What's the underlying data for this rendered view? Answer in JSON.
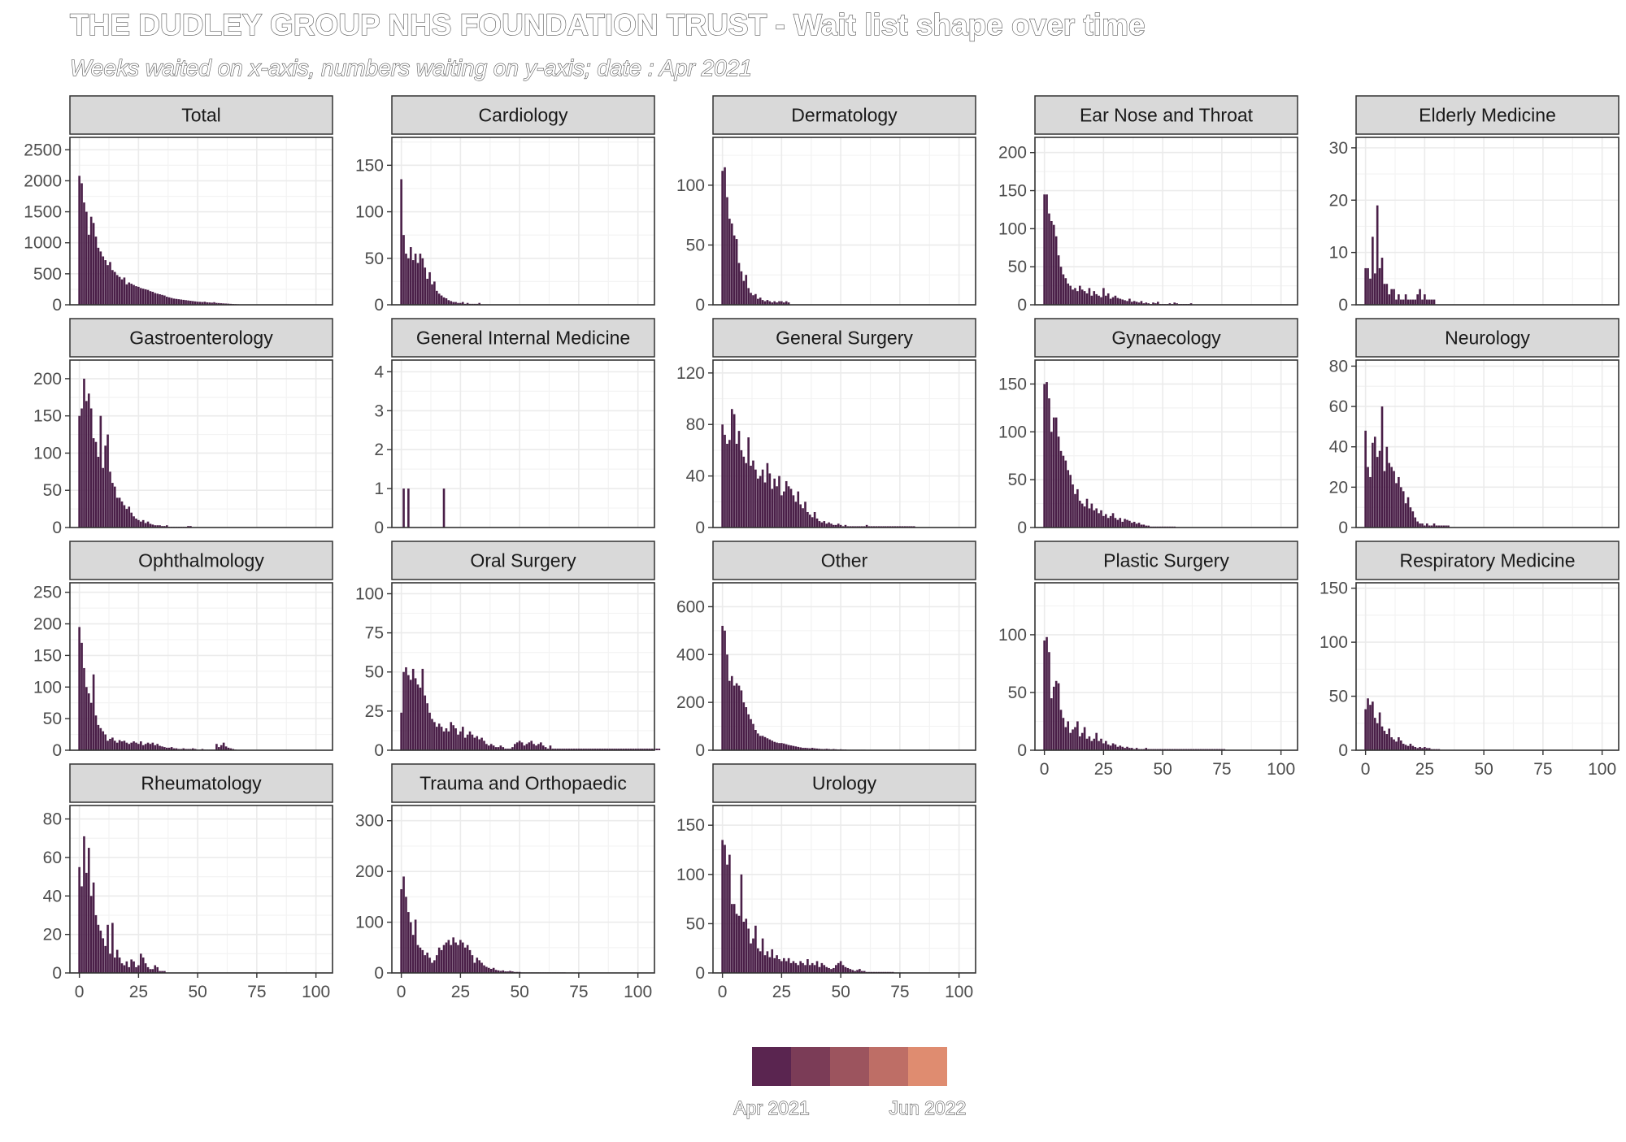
{
  "title": "THE DUDLEY GROUP NHS FOUNDATION TRUST - Wait list shape over time",
  "subtitle": "Weeks waited on x-axis, numbers waiting on y-axis; date : Apr 2021",
  "legend": {
    "labels": [
      "Apr 2021",
      "Jun 2022"
    ],
    "colors": [
      "#5a2550",
      "#7b3c57",
      "#9c545e",
      "#be6e66",
      "#df8c70"
    ]
  },
  "colors": {
    "bar": "#4a1f48",
    "strip": "#d9d9d9",
    "grid": "#ebebeb"
  },
  "chart_data": {
    "type": "bar",
    "xlim": [
      -4,
      107
    ],
    "x_ticks": [
      0,
      25,
      50,
      75,
      100
    ],
    "facets": [
      {
        "name": "Total",
        "ylim": [
          0,
          2700
        ],
        "y_ticks": [
          0,
          500,
          1000,
          1500,
          2000,
          2500
        ],
        "values": [
          2080,
          1960,
          1650,
          1500,
          1130,
          1420,
          1320,
          1100,
          920,
          860,
          780,
          720,
          640,
          690,
          560,
          530,
          480,
          450,
          410,
          440,
          330,
          360,
          340,
          320,
          300,
          290,
          270,
          260,
          250,
          240,
          220,
          210,
          190,
          180,
          170,
          160,
          150,
          130,
          120,
          110,
          100,
          95,
          90,
          85,
          80,
          75,
          70,
          65,
          60,
          55,
          50,
          48,
          45,
          50,
          40,
          38,
          35,
          42,
          30,
          28,
          25,
          22,
          20,
          18,
          15,
          12,
          10,
          8,
          6,
          5,
          4,
          3,
          2,
          2,
          1
        ]
      },
      {
        "name": "Cardiology",
        "ylim": [
          0,
          180
        ],
        "y_ticks": [
          0,
          50,
          100,
          150
        ],
        "values": [
          135,
          75,
          55,
          50,
          62,
          48,
          55,
          45,
          55,
          50,
          40,
          28,
          35,
          22,
          25,
          15,
          12,
          10,
          8,
          7,
          5,
          4,
          3,
          3,
          2,
          2,
          3,
          1,
          2,
          1,
          1,
          1,
          1,
          2
        ]
      },
      {
        "name": "Dermatology",
        "ylim": [
          0,
          140
        ],
        "y_ticks": [
          0,
          50,
          100
        ],
        "values": [
          112,
          115,
          90,
          72,
          68,
          58,
          55,
          35,
          28,
          20,
          25,
          14,
          10,
          8,
          9,
          5,
          6,
          4,
          3,
          4,
          3,
          2,
          3,
          2,
          3,
          3,
          2,
          3,
          2
        ]
      },
      {
        "name": "Ear Nose and Throat",
        "ylim": [
          0,
          220
        ],
        "y_ticks": [
          0,
          50,
          100,
          150,
          200
        ],
        "values": [
          145,
          145,
          120,
          110,
          105,
          90,
          65,
          50,
          40,
          35,
          28,
          25,
          20,
          22,
          18,
          25,
          20,
          18,
          15,
          22,
          12,
          18,
          14,
          12,
          10,
          22,
          12,
          15,
          8,
          10,
          12,
          9,
          8,
          7,
          6,
          5,
          8,
          4,
          5,
          4,
          3,
          5,
          2,
          3,
          2,
          1,
          3,
          2,
          4,
          1,
          1,
          1,
          1,
          2,
          1,
          3,
          2,
          1,
          1,
          1,
          1,
          1,
          2
        ]
      },
      {
        "name": "Elderly Medicine",
        "ylim": [
          0,
          32
        ],
        "y_ticks": [
          0,
          10,
          20,
          30
        ],
        "values": [
          7,
          7,
          5,
          13,
          6,
          19,
          7,
          9,
          4,
          4,
          2,
          3,
          3,
          1,
          2,
          1,
          1,
          2,
          1,
          1,
          1,
          1,
          2,
          3,
          1,
          2,
          1,
          1,
          1,
          1
        ]
      },
      {
        "name": "Gastroenterology",
        "ylim": [
          0,
          225
        ],
        "y_ticks": [
          0,
          50,
          100,
          150,
          200
        ],
        "values": [
          150,
          160,
          200,
          170,
          180,
          160,
          120,
          115,
          95,
          150,
          80,
          110,
          125,
          75,
          60,
          55,
          40,
          40,
          35,
          30,
          25,
          28,
          20,
          15,
          12,
          10,
          8,
          10,
          6,
          8,
          5,
          4,
          3,
          3,
          3,
          2,
          2,
          3,
          1,
          1,
          1,
          1,
          1,
          1,
          1,
          1,
          2,
          2
        ]
      },
      {
        "name": "General Internal Medicine",
        "ylim": [
          0,
          4.3
        ],
        "y_ticks": [
          0,
          1,
          2,
          3,
          4
        ],
        "values": [
          0,
          1,
          0,
          1,
          0,
          0,
          0,
          0,
          0,
          0,
          0,
          0,
          0,
          0,
          0,
          0,
          0,
          0,
          1
        ]
      },
      {
        "name": "General Surgery",
        "ylim": [
          0,
          130
        ],
        "y_ticks": [
          0,
          40,
          80,
          120
        ],
        "values": [
          80,
          72,
          65,
          68,
          92,
          88,
          65,
          75,
          60,
          55,
          50,
          70,
          48,
          52,
          45,
          38,
          40,
          45,
          35,
          50,
          42,
          30,
          38,
          32,
          40,
          25,
          28,
          36,
          32,
          30,
          25,
          20,
          28,
          18,
          15,
          20,
          12,
          10,
          8,
          12,
          7,
          5,
          4,
          5,
          3,
          4,
          3,
          2,
          2,
          3,
          2,
          1,
          2,
          1,
          1,
          1,
          1,
          1,
          1,
          1,
          1,
          2,
          1,
          1,
          1,
          1,
          1,
          1,
          1,
          1,
          1,
          1,
          1,
          1,
          1,
          1,
          1,
          1,
          1,
          1,
          1,
          1
        ]
      },
      {
        "name": "Gynaecology",
        "ylim": [
          0,
          175
        ],
        "y_ticks": [
          0,
          50,
          100,
          150
        ],
        "values": [
          150,
          152,
          135,
          100,
          115,
          115,
          95,
          80,
          75,
          70,
          60,
          55,
          45,
          35,
          40,
          28,
          25,
          22,
          30,
          20,
          25,
          18,
          20,
          15,
          18,
          12,
          14,
          10,
          12,
          15,
          10,
          8,
          10,
          6,
          9,
          8,
          7,
          5,
          6,
          4,
          5,
          3,
          3,
          2,
          2,
          1,
          1,
          1,
          1,
          1,
          1,
          1,
          1,
          1,
          1,
          1
        ]
      },
      {
        "name": "Neurology",
        "ylim": [
          0,
          83
        ],
        "y_ticks": [
          0,
          20,
          40,
          60,
          80
        ],
        "values": [
          48,
          30,
          25,
          42,
          45,
          35,
          38,
          60,
          28,
          40,
          32,
          30,
          28,
          22,
          25,
          20,
          18,
          12,
          15,
          10,
          8,
          5,
          3,
          2,
          2,
          1,
          2,
          1,
          1,
          2,
          1,
          1,
          1,
          1,
          1,
          1
        ]
      },
      {
        "name": "Ophthalmology",
        "ylim": [
          0,
          265
        ],
        "y_ticks": [
          0,
          50,
          100,
          150,
          200,
          250
        ],
        "values": [
          195,
          170,
          130,
          100,
          90,
          75,
          120,
          55,
          40,
          35,
          30,
          25,
          15,
          18,
          20,
          15,
          12,
          16,
          14,
          15,
          12,
          10,
          12,
          14,
          12,
          10,
          14,
          8,
          10,
          12,
          10,
          12,
          8,
          10,
          7,
          6,
          5,
          4,
          4,
          5,
          3,
          3,
          2,
          2,
          3,
          2,
          2,
          2,
          3,
          2,
          1,
          1,
          2,
          1,
          1,
          1,
          1,
          1,
          10,
          5,
          8,
          12,
          6,
          4,
          3,
          2,
          1
        ]
      },
      {
        "name": "Oral Surgery",
        "ylim": [
          0,
          107
        ],
        "y_ticks": [
          0,
          25,
          50,
          75,
          100
        ],
        "values": [
          24,
          50,
          53,
          48,
          45,
          52,
          46,
          42,
          40,
          52,
          35,
          30,
          24,
          20,
          18,
          15,
          17,
          15,
          12,
          14,
          12,
          18,
          16,
          14,
          10,
          12,
          15,
          8,
          10,
          12,
          10,
          8,
          9,
          7,
          8,
          6,
          4,
          3,
          4,
          3,
          2,
          2,
          3,
          2,
          1,
          1,
          1,
          2,
          4,
          5,
          6,
          5,
          3,
          4,
          5,
          6,
          4,
          3,
          4,
          5,
          3,
          2,
          1,
          3,
          1,
          1,
          1,
          1,
          1,
          1,
          1,
          1,
          1,
          1,
          1,
          1,
          1,
          1,
          1,
          1,
          1,
          1,
          1,
          1,
          1,
          1,
          1,
          1,
          1,
          1,
          1,
          1,
          1,
          1,
          1,
          1,
          1,
          1,
          1,
          1,
          1,
          1,
          1,
          1,
          1,
          1,
          1,
          1,
          1,
          1
        ]
      },
      {
        "name": "Other",
        "ylim": [
          0,
          700
        ],
        "y_ticks": [
          0,
          200,
          400,
          600
        ],
        "values": [
          520,
          500,
          400,
          290,
          310,
          270,
          280,
          270,
          250,
          200,
          180,
          150,
          130,
          110,
          85,
          70,
          60,
          60,
          55,
          50,
          45,
          40,
          35,
          32,
          30,
          30,
          28,
          25,
          22,
          20,
          18,
          16,
          14,
          12,
          10,
          10,
          9,
          8,
          10,
          8,
          7,
          6,
          5,
          5,
          6,
          5,
          4,
          5,
          4,
          3,
          4,
          3,
          3,
          2,
          2,
          2,
          2,
          2,
          2,
          2,
          2,
          1,
          1,
          1,
          1,
          1,
          1,
          1,
          1,
          1,
          1,
          1
        ]
      },
      {
        "name": "Plastic Surgery",
        "ylim": [
          0,
          145
        ],
        "y_ticks": [
          0,
          50,
          100
        ],
        "values": [
          95,
          98,
          85,
          45,
          55,
          60,
          58,
          35,
          28,
          20,
          25,
          15,
          18,
          20,
          25,
          12,
          15,
          20,
          10,
          12,
          8,
          10,
          15,
          8,
          10,
          6,
          8,
          5,
          4,
          6,
          5,
          3,
          4,
          3,
          2,
          3,
          2,
          2,
          1,
          2,
          1,
          1,
          1,
          2,
          1,
          1,
          1,
          1,
          1,
          1,
          1,
          1,
          1,
          1,
          1,
          1,
          1,
          1,
          1,
          1,
          1,
          1,
          1,
          1,
          1,
          1,
          1,
          1,
          1,
          1,
          1,
          1,
          1,
          1,
          1,
          1,
          1
        ]
      },
      {
        "name": "Respiratory Medicine",
        "ylim": [
          0,
          155
        ],
        "y_ticks": [
          0,
          50,
          100,
          150
        ],
        "values": [
          38,
          48,
          42,
          45,
          30,
          25,
          35,
          22,
          18,
          15,
          20,
          12,
          10,
          8,
          12,
          9,
          6,
          5,
          4,
          6,
          4,
          3,
          2,
          3,
          2,
          3,
          2,
          2,
          1,
          1,
          1,
          1
        ]
      },
      {
        "name": "Rheumatology",
        "ylim": [
          0,
          87
        ],
        "y_ticks": [
          0,
          20,
          40,
          60,
          80
        ],
        "values": [
          55,
          45,
          71,
          52,
          65,
          40,
          47,
          30,
          25,
          22,
          18,
          14,
          25,
          10,
          26,
          8,
          12,
          8,
          5,
          4,
          6,
          3,
          7,
          6,
          3,
          4,
          10,
          8,
          5,
          3,
          2,
          2,
          4,
          3,
          1,
          1,
          1
        ]
      },
      {
        "name": "Trauma and Orthopaedic",
        "ylim": [
          0,
          330
        ],
        "y_ticks": [
          0,
          100,
          200,
          300
        ],
        "values": [
          165,
          190,
          150,
          120,
          100,
          75,
          105,
          55,
          50,
          45,
          35,
          40,
          30,
          20,
          25,
          35,
          50,
          45,
          55,
          60,
          65,
          55,
          70,
          60,
          55,
          65,
          60,
          50,
          55,
          45,
          35,
          20,
          30,
          25,
          20,
          15,
          12,
          10,
          8,
          10,
          6,
          5,
          4,
          5,
          3,
          3,
          4,
          3,
          2,
          2,
          2,
          1,
          1,
          1,
          1,
          1,
          1,
          1,
          1,
          1,
          1,
          1,
          1,
          1,
          1,
          1,
          1,
          1,
          1,
          1
        ]
      },
      {
        "name": "Urology",
        "ylim": [
          0,
          170
        ],
        "y_ticks": [
          0,
          50,
          100,
          150
        ],
        "values": [
          135,
          130,
          110,
          120,
          70,
          70,
          60,
          58,
          100,
          52,
          55,
          45,
          30,
          35,
          48,
          25,
          22,
          35,
          18,
          22,
          16,
          24,
          15,
          18,
          14,
          12,
          15,
          12,
          15,
          10,
          12,
          10,
          8,
          12,
          10,
          8,
          14,
          8,
          10,
          8,
          12,
          6,
          10,
          8,
          6,
          5,
          4,
          5,
          8,
          10,
          12,
          8,
          6,
          5,
          4,
          3,
          2,
          3,
          4,
          2,
          2,
          1,
          1,
          1,
          1,
          1,
          1,
          1,
          1,
          1,
          1,
          1,
          1
        ]
      }
    ]
  }
}
